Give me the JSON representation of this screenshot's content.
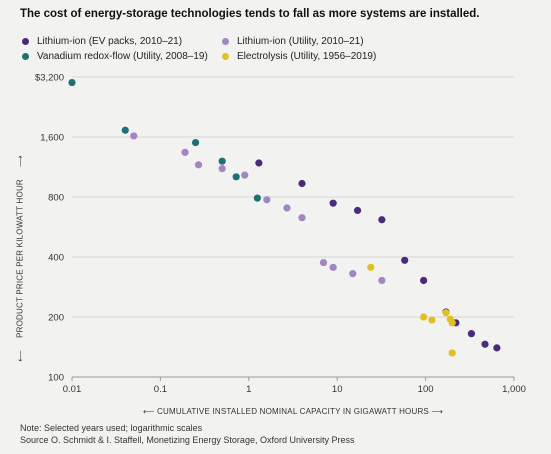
{
  "chart_data": {
    "type": "scatter",
    "title": "The cost of energy-storage technologies tends to fall as more systems are installed.",
    "xlabel": "CUMULATIVE INSTALLED NOMINAL CAPACITY IN GIGAWATT HOURS",
    "ylabel": "PRODUCT PRICE PER KILOWATT HOUR",
    "x_scale": "log",
    "y_scale": "log",
    "xlim": [
      0.01,
      1000
    ],
    "ylim": [
      100,
      3200
    ],
    "x_ticks": [
      0.01,
      0.1,
      1,
      10,
      100,
      1000
    ],
    "x_tick_labels": [
      "0.01",
      "0.1",
      "1",
      "10",
      "100",
      "1,000"
    ],
    "y_ticks": [
      100,
      200,
      400,
      800,
      1600,
      3200
    ],
    "y_tick_labels": [
      "100",
      "200",
      "400",
      "800",
      "1,600",
      "$3,200"
    ],
    "grid": true,
    "legend_position": "top",
    "series": [
      {
        "name": "Lithium-ion (EV packs, 2010–21)",
        "color": "#4b2a7a",
        "points": [
          [
            1.3,
            1185
          ],
          [
            4,
            935
          ],
          [
            9,
            745
          ],
          [
            17,
            685
          ],
          [
            32,
            615
          ],
          [
            58,
            385
          ],
          [
            95,
            305
          ],
          [
            170,
            212
          ],
          [
            220,
            187
          ],
          [
            330,
            165
          ],
          [
            470,
            146
          ],
          [
            640,
            140
          ]
        ]
      },
      {
        "name": "Lithium-ion (Utility, 2010–21)",
        "color": "#a285c3",
        "points": [
          [
            0.05,
            1620
          ],
          [
            0.19,
            1340
          ],
          [
            0.27,
            1160
          ],
          [
            0.5,
            1110
          ],
          [
            0.9,
            1030
          ],
          [
            1.6,
            775
          ],
          [
            2.7,
            705
          ],
          [
            4,
            630
          ],
          [
            7,
            375
          ],
          [
            9,
            355
          ],
          [
            15,
            330
          ],
          [
            32,
            305
          ]
        ]
      },
      {
        "name": "Vanadium redox-flow (Utility, 2008–19)",
        "color": "#1e7075",
        "points": [
          [
            0.01,
            3000
          ],
          [
            0.04,
            1730
          ],
          [
            0.25,
            1500
          ],
          [
            0.5,
            1210
          ],
          [
            0.72,
            1010
          ],
          [
            1.25,
            790
          ]
        ]
      },
      {
        "name": "Electrolysis (Utility, 1956–2019)",
        "color": "#e2c022",
        "points": [
          [
            24,
            355
          ],
          [
            95,
            200
          ],
          [
            118,
            193
          ],
          [
            170,
            210
          ],
          [
            190,
            195
          ],
          [
            200,
            187
          ],
          [
            200,
            132
          ]
        ]
      }
    ]
  },
  "notes": {
    "note": "Note: Selected years used; logarithmic scales",
    "source": "Source   O. Schmidt & I. Staffell, Monetizing Energy Storage, Oxford University Press"
  }
}
